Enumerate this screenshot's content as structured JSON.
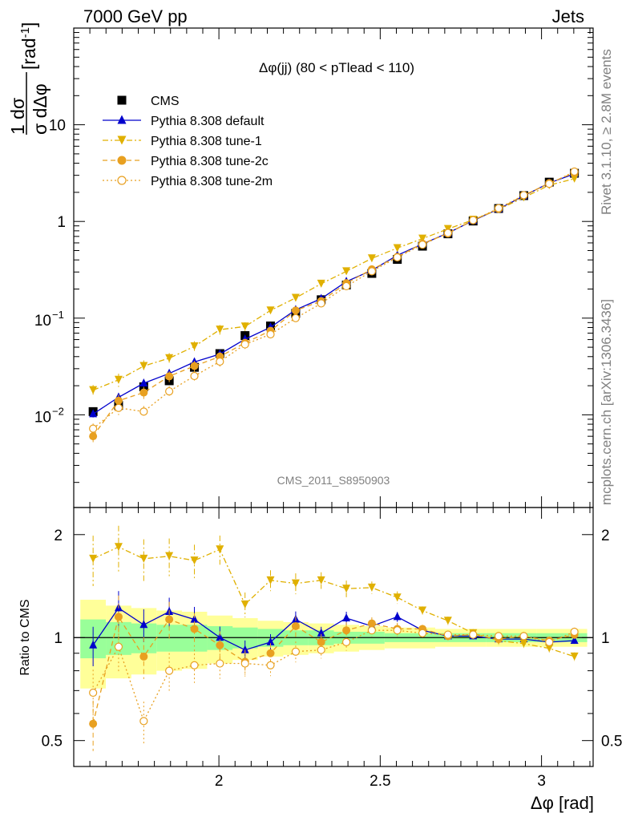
{
  "header": {
    "left": "7000 GeV pp",
    "right": "Jets"
  },
  "side_labels": {
    "rivet": "Rivet 3.1.10, ≥ 2.8M events",
    "mcplots": "mcplots.cern.ch [arXiv:1306.3436]"
  },
  "analysis_id": "CMS_2011_S8950903",
  "chart_data": [
    {
      "type": "line",
      "panel": "main",
      "title": "Δφ(jj) (80 < pTlead <  110)",
      "xlabel": "Δφ [rad]",
      "ylabel_num": "1 dσ",
      "ylabel_den": "σ dΔφ",
      "ylabel_unit": "[rad",
      "ylabel_unit_exp": "-1",
      "ylabel_unit_end": "]",
      "yscale": "log",
      "ylim": [
        0.0011,
        100
      ],
      "xlim": [
        1.55,
        3.16
      ],
      "x": [
        1.61,
        1.689,
        1.767,
        1.846,
        1.924,
        2.003,
        2.081,
        2.16,
        2.238,
        2.317,
        2.395,
        2.474,
        2.553,
        2.631,
        2.71,
        2.788,
        2.867,
        2.945,
        3.024,
        3.102
      ],
      "x_ticks": [
        {
          "v": 2,
          "label": "2"
        },
        {
          "v": 2.5,
          "label": "2.5"
        },
        {
          "v": 3,
          "label": "3"
        }
      ],
      "y_ticks": [
        {
          "v": 0.01,
          "base": "10",
          "exp": "−2"
        },
        {
          "v": 0.1,
          "base": "10",
          "exp": "−1"
        },
        {
          "v": 1,
          "label": "1"
        },
        {
          "v": 10,
          "label": "10"
        }
      ],
      "series": [
        {
          "name": "CMS",
          "color": "#000000",
          "marker": "square",
          "line": "none",
          "values": [
            0.0108,
            0.0125,
            0.0195,
            0.0225,
            0.031,
            0.043,
            0.066,
            0.083,
            0.112,
            0.155,
            0.22,
            0.29,
            0.405,
            0.555,
            0.745,
            1.01,
            1.36,
            1.85,
            2.55,
            3.15
          ]
        },
        {
          "name": "Pythia 8.308 default",
          "color": "#0000cc",
          "marker": "triangle-up",
          "line": "solid",
          "values": [
            0.0102,
            0.0152,
            0.0212,
            0.0268,
            0.0352,
            0.0425,
            0.0605,
            0.0805,
            0.122,
            0.159,
            0.239,
            0.312,
            0.447,
            0.585,
            0.76,
            1.02,
            1.345,
            1.84,
            2.5,
            3.1
          ]
        },
        {
          "name": "Pythia 8.308 tune-1",
          "color": "#e0b000",
          "marker": "triangle-down",
          "line": "dashdot",
          "values": [
            0.018,
            0.023,
            0.032,
            0.0385,
            0.051,
            0.076,
            0.082,
            0.12,
            0.162,
            0.227,
            0.305,
            0.415,
            0.53,
            0.665,
            0.835,
            1.04,
            1.33,
            1.77,
            2.37,
            2.77
          ]
        },
        {
          "name": "Pythia 8.308 tune-2c",
          "color": "#e8a020",
          "marker": "circle",
          "line": "dashed",
          "values": [
            0.006,
            0.014,
            0.017,
            0.025,
            0.032,
            0.04,
            0.0555,
            0.074,
            0.12,
            0.15,
            0.23,
            0.32,
            0.43,
            0.59,
            0.75,
            1.03,
            1.35,
            1.86,
            2.49,
            3.2
          ]
        },
        {
          "name": "Pythia 8.308 tune-2m",
          "color": "#e8a020",
          "marker": "open-circle",
          "line": "dotted",
          "values": [
            0.0072,
            0.0118,
            0.0108,
            0.0175,
            0.0252,
            0.0355,
            0.0535,
            0.068,
            0.1,
            0.142,
            0.214,
            0.305,
            0.425,
            0.575,
            0.76,
            1.03,
            1.37,
            1.87,
            2.45,
            3.28
          ]
        }
      ]
    },
    {
      "type": "line",
      "panel": "ratio",
      "ylabel": "Ratio to CMS",
      "xlabel": "Δφ [rad]",
      "yscale": "log",
      "ylim": [
        0.42,
        2.4
      ],
      "xlim": [
        1.55,
        3.16
      ],
      "y_ticks": [
        {
          "v": 0.5,
          "label": "0.5"
        },
        {
          "v": 1,
          "label": "1"
        },
        {
          "v": 2,
          "label": "2"
        }
      ],
      "x_ticks": [
        {
          "v": 2,
          "label": "2"
        },
        {
          "v": 2.5,
          "label": "2.5"
        },
        {
          "v": 3,
          "label": "3"
        }
      ],
      "band_outer": [
        0.29,
        0.24,
        0.22,
        0.2,
        0.19,
        0.16,
        0.14,
        0.12,
        0.11,
        0.1,
        0.09,
        0.08,
        0.07,
        0.07,
        0.06,
        0.06,
        0.06,
        0.06,
        0.06,
        0.06
      ],
      "band_inner": [
        0.13,
        0.11,
        0.1,
        0.09,
        0.09,
        0.08,
        0.07,
        0.06,
        0.05,
        0.05,
        0.04,
        0.04,
        0.03,
        0.03,
        0.03,
        0.03,
        0.03,
        0.03,
        0.03,
        0.03
      ],
      "series": [
        {
          "name": "Pythia 8.308 default",
          "color": "#0000cc",
          "values": [
            0.95,
            1.22,
            1.09,
            1.19,
            1.13,
            1.0,
            0.92,
            0.97,
            1.13,
            1.03,
            1.14,
            1.08,
            1.15,
            1.05,
            1.01,
            1.01,
            0.99,
            0.99,
            0.97,
            0.98
          ]
        },
        {
          "name": "Pythia 8.308 tune-1",
          "color": "#e0b000",
          "values": [
            1.7,
            1.84,
            1.7,
            1.73,
            1.68,
            1.81,
            1.25,
            1.47,
            1.44,
            1.47,
            1.39,
            1.4,
            1.31,
            1.2,
            1.12,
            1.03,
            0.98,
            0.96,
            0.93,
            0.88
          ]
        },
        {
          "name": "Pythia 8.308 tune-2c",
          "color": "#e8a020",
          "values": [
            0.56,
            1.15,
            0.88,
            1.13,
            1.06,
            0.95,
            0.85,
            0.9,
            1.08,
            0.97,
            1.05,
            1.1,
            1.06,
            1.06,
            1.01,
            1.02,
            0.99,
            1.01,
            0.98,
            1.02
          ]
        },
        {
          "name": "Pythia 8.308 tune-2m",
          "color": "#e8a020",
          "values": [
            0.69,
            0.94,
            0.57,
            0.8,
            0.83,
            0.84,
            0.84,
            0.83,
            0.91,
            0.92,
            0.97,
            1.05,
            1.05,
            1.03,
            1.02,
            1.02,
            1.01,
            1.01,
            0.97,
            1.04
          ]
        }
      ]
    }
  ]
}
